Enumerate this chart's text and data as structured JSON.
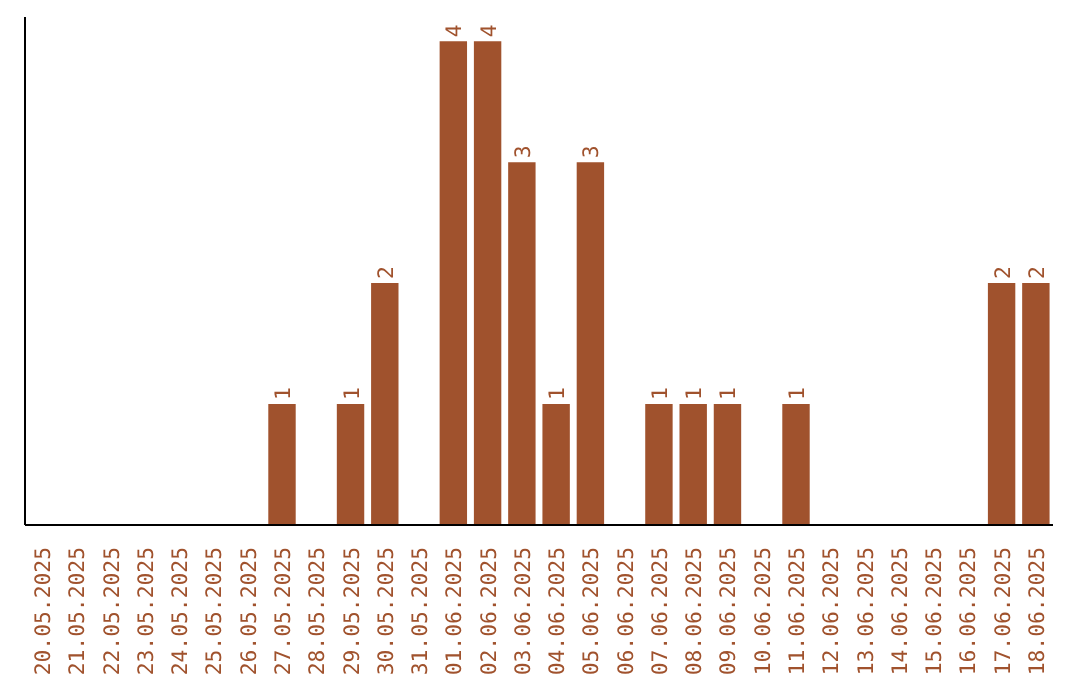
{
  "chart_data": {
    "type": "bar",
    "categories": [
      "20.05.2025",
      "21.05.2025",
      "22.05.2025",
      "23.05.2025",
      "24.05.2025",
      "25.05.2025",
      "26.05.2025",
      "27.05.2025",
      "28.05.2025",
      "29.05.2025",
      "30.05.2025",
      "31.05.2025",
      "01.06.2025",
      "02.06.2025",
      "03.06.2025",
      "04.06.2025",
      "05.06.2025",
      "06.06.2025",
      "07.06.2025",
      "08.06.2025",
      "09.06.2025",
      "10.06.2025",
      "11.06.2025",
      "12.06.2025",
      "13.06.2025",
      "14.06.2025",
      "15.06.2025",
      "16.06.2025",
      "17.06.2025",
      "18.06.2025"
    ],
    "values": [
      0,
      0,
      0,
      0,
      0,
      0,
      0,
      1,
      0,
      1,
      2,
      0,
      4,
      4,
      3,
      1,
      3,
      0,
      1,
      1,
      1,
      0,
      1,
      0,
      0,
      0,
      0,
      0,
      2,
      2
    ],
    "value_labels": [
      null,
      null,
      null,
      null,
      null,
      null,
      null,
      "1",
      null,
      "1",
      "2",
      null,
      "4",
      "4",
      "3",
      "1",
      "3",
      null,
      "1",
      "1",
      "1",
      null,
      "1",
      null,
      null,
      null,
      null,
      null,
      "2",
      "2"
    ],
    "color": "#a0522d",
    "grid": false
  }
}
